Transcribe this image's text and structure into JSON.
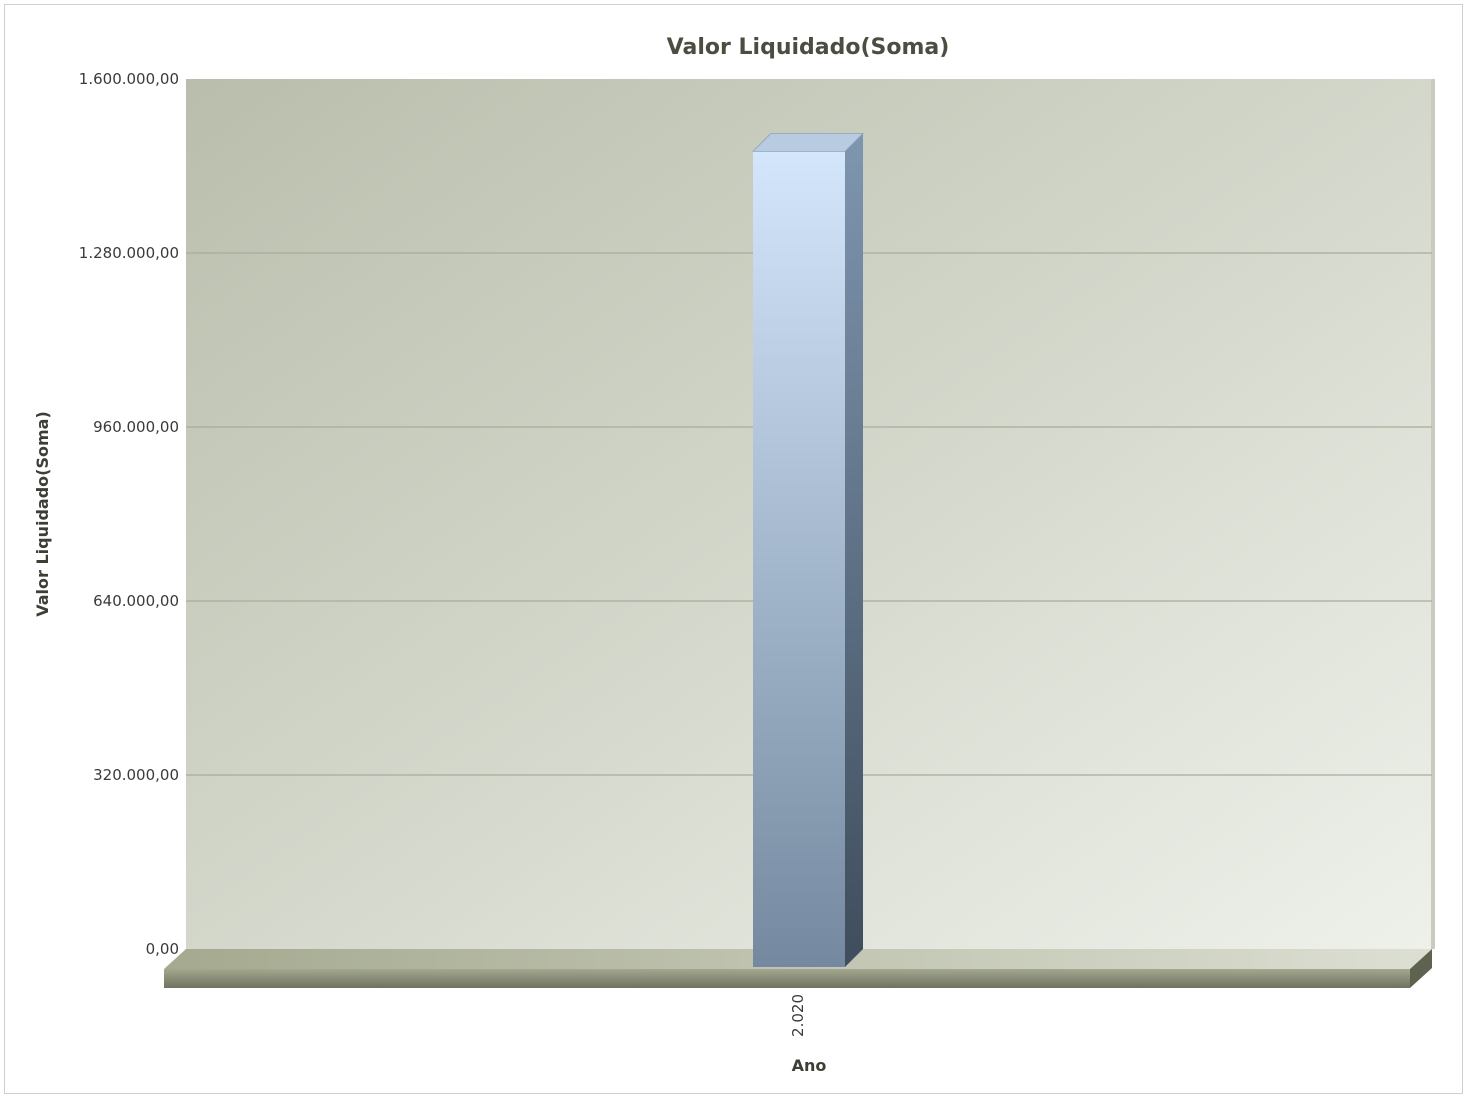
{
  "chart_data": {
    "type": "bar",
    "title": "Valor Liquidado(Soma)",
    "xlabel": "Ano",
    "ylabel": "Valor Liquidado(Soma)",
    "categories": [
      "2.020"
    ],
    "values": [
      1500000
    ],
    "ylim": [
      0,
      1600000
    ],
    "yticks": [
      0,
      320000,
      640000,
      960000,
      1280000,
      1600000
    ],
    "ytick_labels": [
      "0,00",
      "320.000,00",
      "640.000,00",
      "960.000,00",
      "1.280.000,00",
      "1.600.000,00"
    ],
    "grid": true,
    "legend": "none",
    "colors": {
      "bar_top": "#d4e6fb",
      "bar_bottom": "#74899f",
      "bar_side": "#4b5b6c",
      "plot_bg_start": "#b9beac",
      "plot_bg_end": "#eef1ea",
      "gridline": "#a8ac9a",
      "floor": "#9a9f88"
    }
  }
}
